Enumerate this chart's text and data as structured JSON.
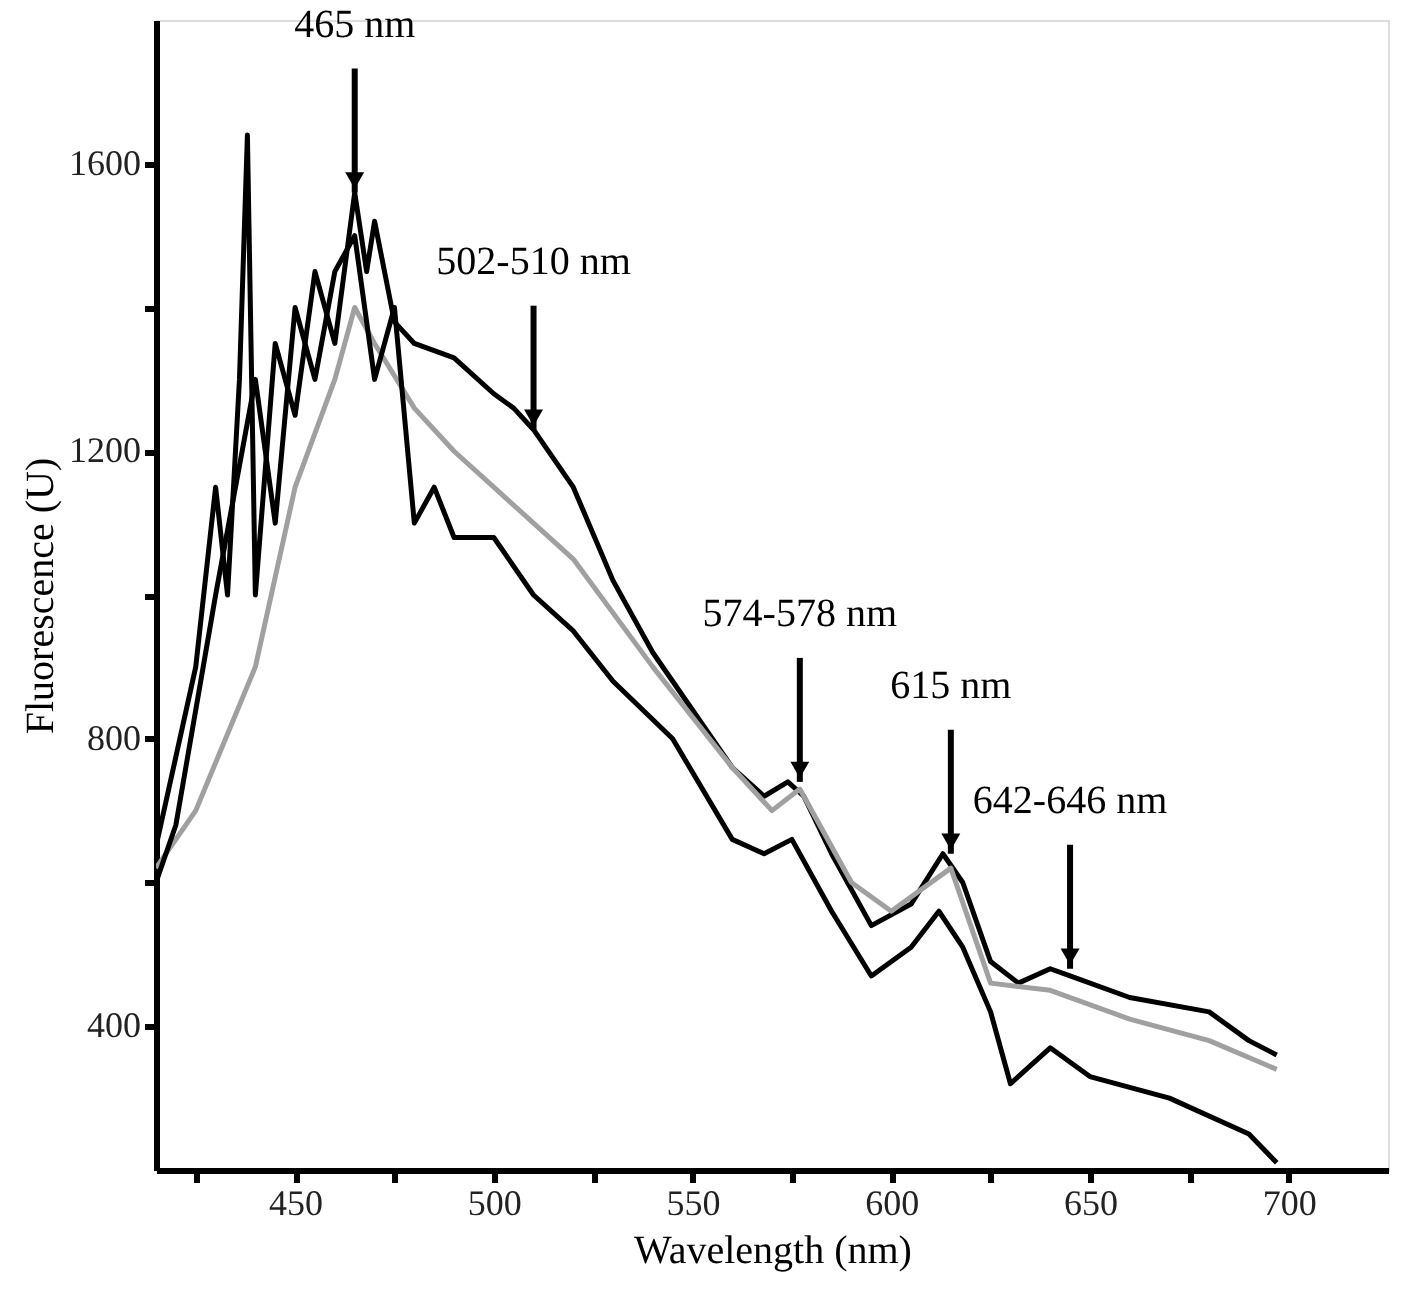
{
  "chart_data": {
    "type": "line",
    "xlabel": "Wavelength (nm)",
    "ylabel": "Fluorescence (U)",
    "xlim": [
      415,
      725
    ],
    "ylim": [
      200,
      1800
    ],
    "xticks": [
      {
        "value": 425,
        "label": null
      },
      450,
      {
        "value": 475,
        "label": null
      },
      500,
      {
        "value": 525,
        "label": null
      },
      550,
      {
        "value": 575,
        "label": null
      },
      600,
      {
        "value": 625,
        "label": null
      },
      650,
      {
        "value": 675,
        "label": null
      },
      700
    ],
    "yticks": [
      400,
      {
        "value": 600,
        "label": null
      },
      800,
      {
        "value": 1000,
        "label": null
      },
      1200,
      {
        "value": 1400,
        "label": null
      },
      1600
    ],
    "grid": false,
    "marker": "none",
    "line_style": "solid",
    "series": [
      {
        "color": "#000000",
        "x": [
          415,
          425,
          430,
          433,
          436,
          438,
          440,
          445,
          450,
          455,
          460,
          465,
          468,
          470,
          475,
          480,
          490,
          500,
          505,
          510,
          520,
          530,
          540,
          550,
          560,
          568,
          574,
          578,
          585,
          595,
          605,
          613,
          618,
          625,
          632,
          640,
          645,
          660,
          680,
          690,
          697
        ],
        "values": [
          650,
          900,
          1150,
          1000,
          1300,
          1640,
          1000,
          1350,
          1250,
          1450,
          1350,
          1560,
          1450,
          1520,
          1380,
          1350,
          1330,
          1280,
          1260,
          1230,
          1150,
          1020,
          920,
          840,
          760,
          720,
          740,
          720,
          640,
          540,
          570,
          640,
          600,
          490,
          460,
          480,
          470,
          440,
          420,
          380,
          360
        ]
      },
      {
        "color": "#a0a0a0",
        "x": [
          415,
          425,
          440,
          450,
          460,
          465,
          470,
          480,
          490,
          500,
          520,
          540,
          560,
          570,
          577,
          590,
          600,
          615,
          625,
          640,
          660,
          680,
          697
        ],
        "values": [
          620,
          700,
          900,
          1150,
          1300,
          1400,
          1350,
          1260,
          1200,
          1150,
          1050,
          900,
          760,
          700,
          730,
          600,
          560,
          620,
          460,
          450,
          410,
          380,
          340
        ]
      },
      {
        "color": "#000000",
        "x": [
          415,
          420,
          430,
          440,
          445,
          450,
          455,
          460,
          465,
          470,
          475,
          480,
          485,
          490,
          500,
          510,
          520,
          530,
          545,
          560,
          568,
          575,
          585,
          595,
          605,
          612,
          618,
          625,
          630,
          640,
          650,
          670,
          690,
          697
        ],
        "values": [
          600,
          680,
          1000,
          1300,
          1100,
          1400,
          1300,
          1450,
          1500,
          1300,
          1400,
          1100,
          1150,
          1080,
          1080,
          1000,
          950,
          880,
          800,
          660,
          640,
          660,
          560,
          470,
          510,
          560,
          510,
          420,
          320,
          370,
          330,
          300,
          250,
          210
        ]
      }
    ],
    "annotations": [
      {
        "text": "465 nm",
        "x": 465,
        "y": 1560
      },
      {
        "text": "502-510 nm",
        "x": 510,
        "y": 1230
      },
      {
        "text": "574-578 nm",
        "x": 577,
        "y": 740
      },
      {
        "text": "615 nm",
        "x": 615,
        "y": 640
      },
      {
        "text": "642-646 nm",
        "x": 645,
        "y": 480
      }
    ]
  }
}
